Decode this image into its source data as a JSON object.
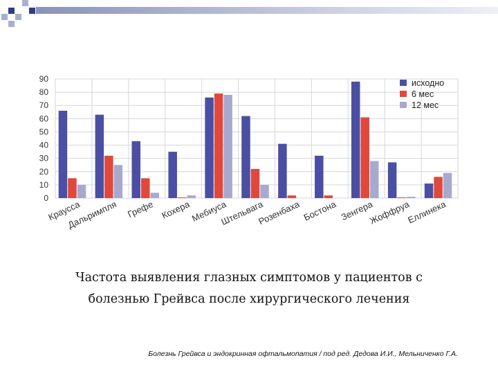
{
  "colors": {
    "deco_dark": "#2e3d8a",
    "deco_light": "#a9b0cf",
    "grid": "#d6d6d6",
    "axis_text": "#333333"
  },
  "chart_data": {
    "type": "bar",
    "categories": [
      "Краусса",
      "Дальримпля",
      "Грефе",
      "Кохера",
      "Мебиуса",
      "Штельвага",
      "Розенбаха",
      "Бостона",
      "Зенгера",
      "Жоффруа",
      "Еллинека"
    ],
    "series": [
      {
        "name": "исходно",
        "color": "#4b4fa3",
        "values": [
          66,
          63,
          43,
          35,
          76,
          62,
          41,
          32,
          88,
          27,
          11
        ]
      },
      {
        "name": "6 мес",
        "color": "#e0483c",
        "values": [
          15,
          32,
          15,
          0.5,
          79,
          22,
          2,
          2,
          61,
          0.5,
          16
        ]
      },
      {
        "name": "12 мес",
        "color": "#a7a9cf",
        "values": [
          10,
          25,
          4,
          2,
          78,
          10,
          0,
          0,
          28,
          1,
          19
        ]
      }
    ],
    "yticks": [
      0,
      10,
      20,
      30,
      40,
      50,
      60,
      70,
      80,
      90
    ],
    "ylim": [
      0,
      90
    ],
    "grid": true,
    "legend": "top-right",
    "title": "",
    "xlabel": "",
    "ylabel": ""
  },
  "caption": {
    "line1": "Частота выявления глазных симптомов у пациентов с",
    "line2": "болезнью Грейвса после хирургического лечения"
  },
  "source": "Болезнь Грейвса и эндокринная офтальмопатия / под ред. Дедова И.И., Мельниченко Г.А."
}
